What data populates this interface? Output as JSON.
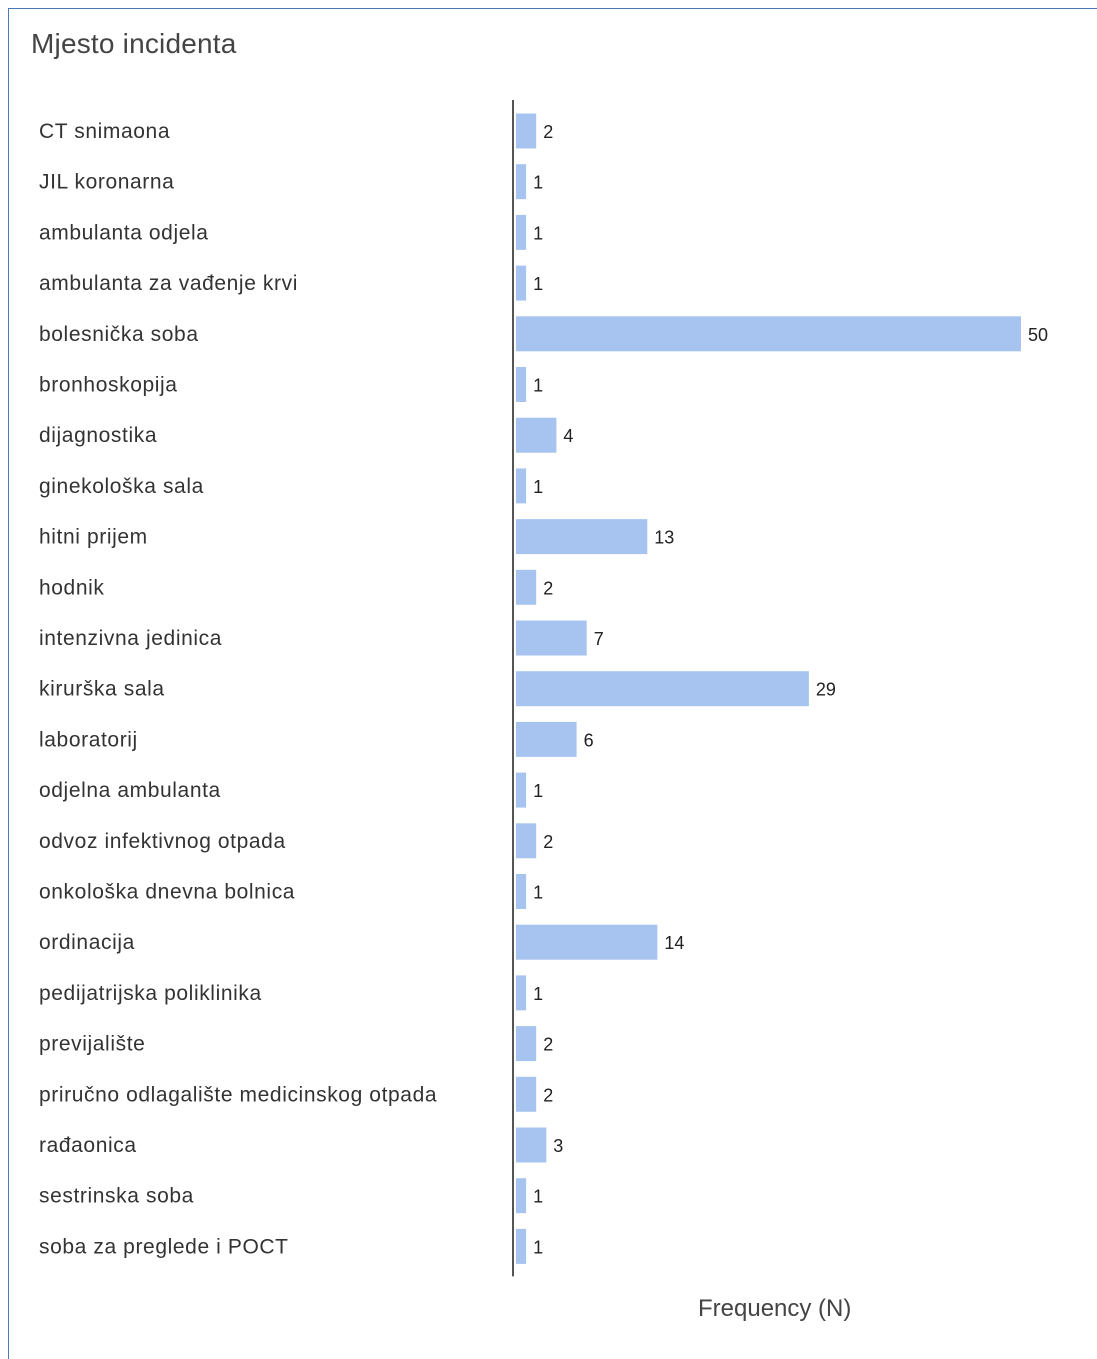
{
  "chart_data": {
    "type": "bar",
    "orientation": "horizontal",
    "title": "Mjesto incidenta",
    "xlabel": "Frequency (N)",
    "ylabel": "",
    "categories": [
      "CT snimaona",
      "JIL koronarna",
      "ambulanta odjela",
      "ambulanta za vađenje krvi",
      "bolesnička soba",
      "bronhoskopija",
      "dijagnostika",
      "ginekološka sala",
      "hitni prijem",
      "hodnik",
      "intenzivna jedinica",
      "kirurška sala",
      "laboratorij",
      "odjelna ambulanta",
      "odvoz infektivnog otpada",
      "onkološka dnevna bolnica",
      "ordinacija",
      "pedijatrijska poliklinika",
      "previjalište",
      "priručno odlagalište medicinskog otpada",
      "rađaonica",
      "sestrinska soba",
      "soba za preglede i POCT"
    ],
    "values": [
      2,
      1,
      1,
      1,
      50,
      1,
      4,
      1,
      13,
      2,
      7,
      29,
      6,
      1,
      2,
      1,
      14,
      1,
      2,
      2,
      3,
      1,
      1
    ],
    "xlim": [
      0,
      50
    ],
    "grid": false,
    "legend": "none",
    "data_labels": true,
    "bar_color": "#a7c4f0",
    "axis_color": "#555555",
    "border_color": "#4a78b5"
  }
}
